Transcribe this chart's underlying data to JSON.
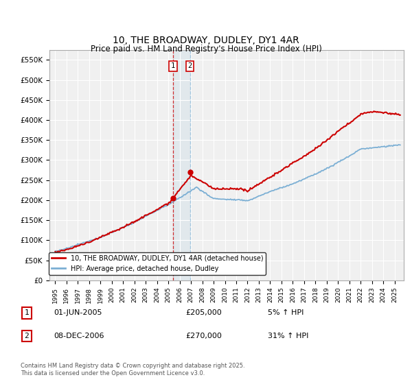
{
  "title": "10, THE BROADWAY, DUDLEY, DY1 4AR",
  "subtitle": "Price paid vs. HM Land Registry's House Price Index (HPI)",
  "ylabel_ticks": [
    "£0",
    "£50K",
    "£100K",
    "£150K",
    "£200K",
    "£250K",
    "£300K",
    "£350K",
    "£400K",
    "£450K",
    "£500K",
    "£550K"
  ],
  "ytick_vals": [
    0,
    50000,
    100000,
    150000,
    200000,
    250000,
    300000,
    350000,
    400000,
    450000,
    500000,
    550000
  ],
  "ylim": [
    0,
    575000
  ],
  "xlim_start": 1994.5,
  "xlim_end": 2025.8,
  "sale1_x": 2005.417,
  "sale1_y": 205000,
  "sale1_label": "1",
  "sale1_date": "01-JUN-2005",
  "sale1_price": "£205,000",
  "sale1_change": "5% ↑ HPI",
  "sale2_x": 2006.917,
  "sale2_y": 270000,
  "sale2_label": "2",
  "sale2_date": "08-DEC-2006",
  "sale2_price": "£270,000",
  "sale2_change": "31% ↑ HPI",
  "property_color": "#cc0000",
  "hpi_color": "#7bafd4",
  "background_color": "#f0f0f0",
  "grid_color": "#ffffff",
  "legend_property": "10, THE BROADWAY, DUDLEY, DY1 4AR (detached house)",
  "legend_hpi": "HPI: Average price, detached house, Dudley",
  "footnote": "Contains HM Land Registry data © Crown copyright and database right 2025.\nThis data is licensed under the Open Government Licence v3.0."
}
